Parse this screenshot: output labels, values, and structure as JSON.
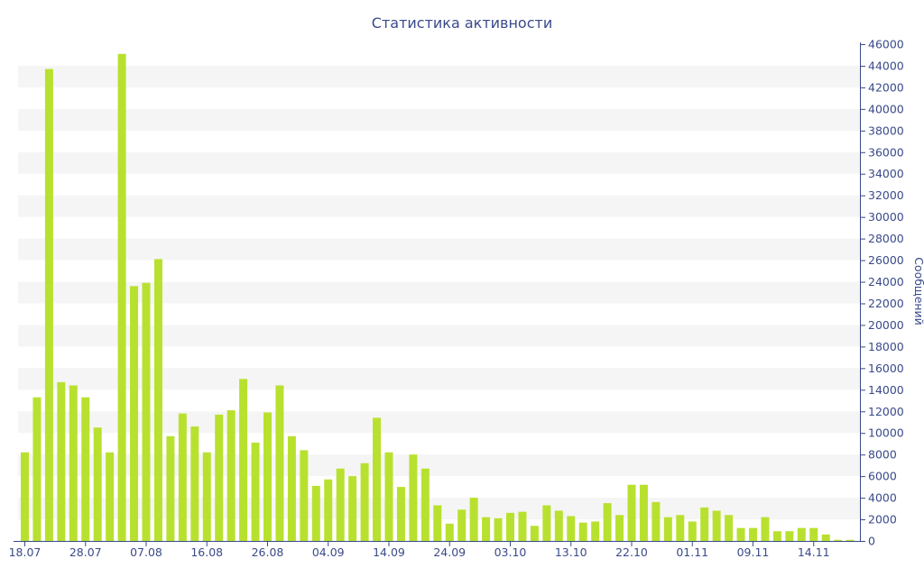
{
  "chart_data": {
    "type": "bar",
    "title": "Статистика активности",
    "xlabel": "",
    "ylabel": "Сообщений",
    "ylim": [
      0,
      46000
    ],
    "y_ticks": [
      0,
      2000,
      4000,
      6000,
      8000,
      10000,
      12000,
      14000,
      16000,
      18000,
      20000,
      22000,
      24000,
      26000,
      28000,
      30000,
      32000,
      34000,
      36000,
      38000,
      40000,
      42000,
      44000,
      46000
    ],
    "y_axis_position": "right",
    "grid": "alternating horizontal bands",
    "bar_color": "#b8e12f",
    "axis_color": "#3a4a8a",
    "x_tick_labels": [
      {
        "index": 0,
        "label": "18.07"
      },
      {
        "index": 5,
        "label": "28.07"
      },
      {
        "index": 10,
        "label": "07.08"
      },
      {
        "index": 15,
        "label": "16.08"
      },
      {
        "index": 20,
        "label": "26.08"
      },
      {
        "index": 25,
        "label": "04.09"
      },
      {
        "index": 30,
        "label": "14.09"
      },
      {
        "index": 35,
        "label": "24.09"
      },
      {
        "index": 40,
        "label": "03.10"
      },
      {
        "index": 45,
        "label": "13.10"
      },
      {
        "index": 50,
        "label": "22.10"
      },
      {
        "index": 55,
        "label": "01.11"
      },
      {
        "index": 60,
        "label": "09.11"
      },
      {
        "index": 65,
        "label": "14.11"
      }
    ],
    "values": [
      8200,
      13300,
      43700,
      14700,
      14400,
      13300,
      10500,
      8200,
      45100,
      23600,
      23900,
      26100,
      9700,
      11800,
      10600,
      8200,
      11700,
      12100,
      15000,
      9100,
      11900,
      14400,
      9700,
      8400,
      5100,
      5700,
      6700,
      6000,
      7200,
      11400,
      8200,
      5000,
      8000,
      6700,
      3300,
      1600,
      2900,
      4000,
      2200,
      2100,
      2600,
      2700,
      1400,
      3300,
      2800,
      2300,
      1700,
      1800,
      3500,
      2400,
      5200,
      5200,
      3600,
      2200,
      2400,
      1800,
      3100,
      2800,
      2400,
      1200,
      1200,
      2200,
      900,
      900,
      1200,
      1200,
      600,
      100,
      100
    ]
  }
}
